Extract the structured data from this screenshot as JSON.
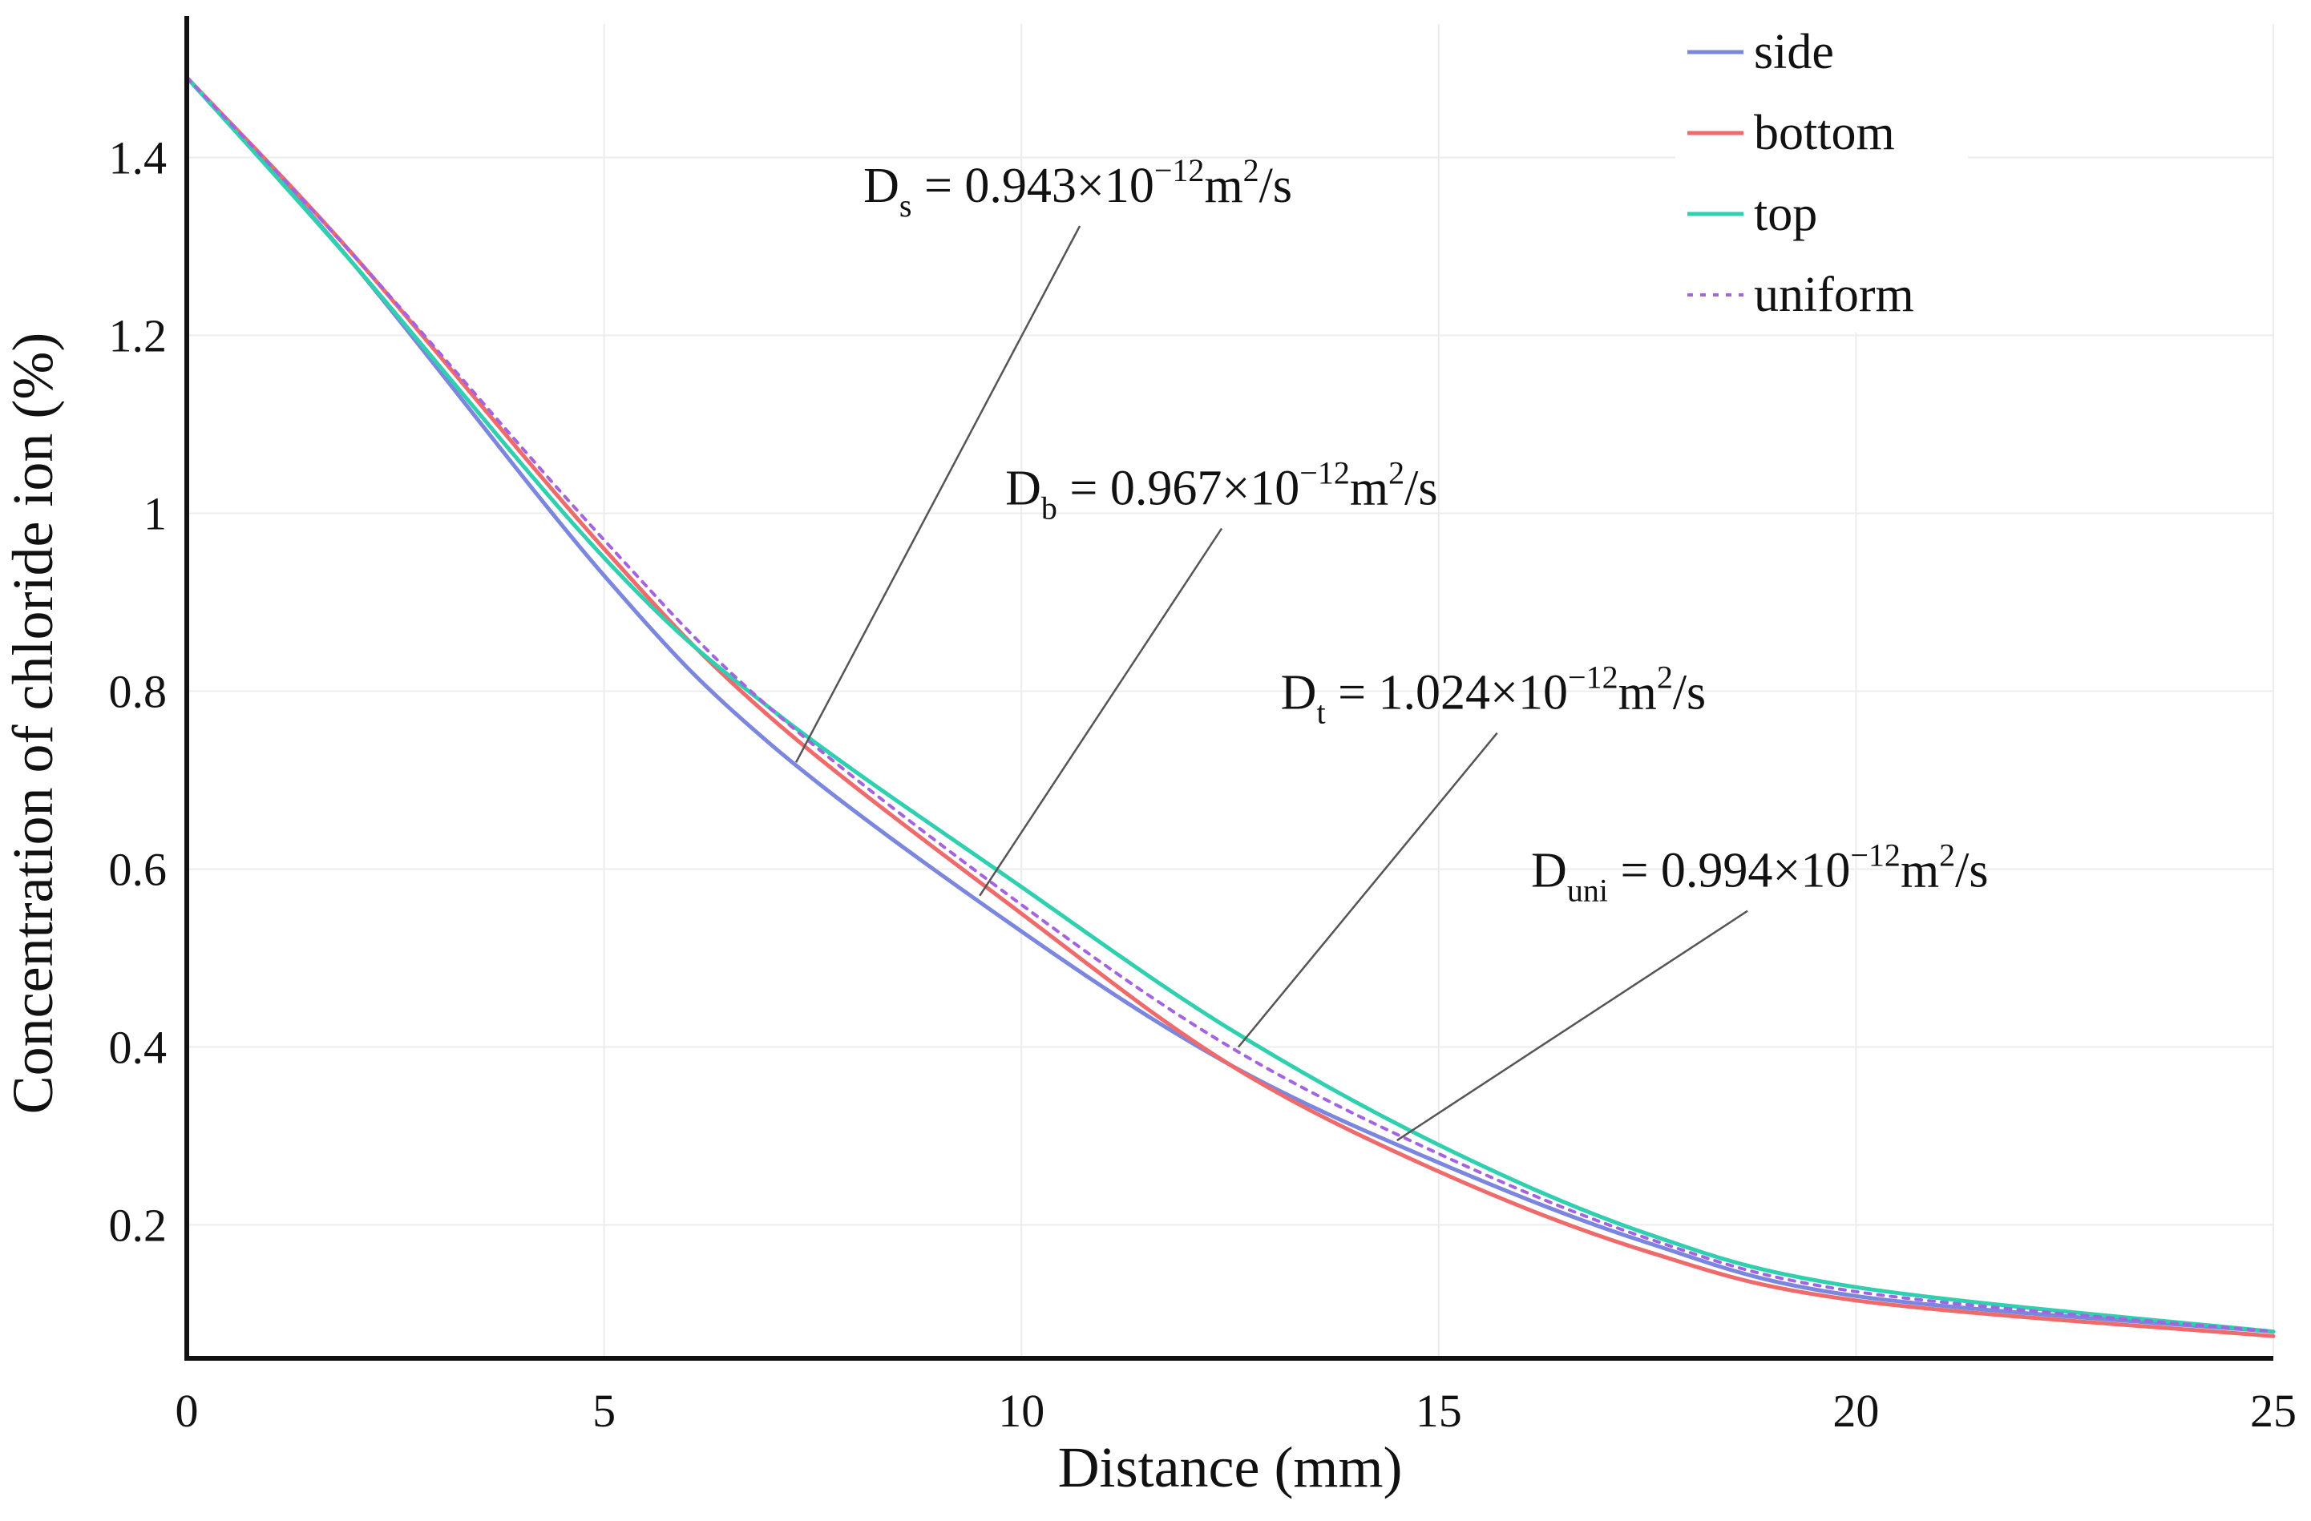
{
  "chart_data": {
    "type": "line",
    "xlabel": "Distance (mm)",
    "ylabel": "Concentration of chloride ion (%)",
    "xlim": [
      0,
      25
    ],
    "ylim": [
      0.05,
      1.55
    ],
    "grid": true,
    "legend_position": "top-right",
    "x_ticks": [
      {
        "value": 0,
        "label": "0"
      },
      {
        "value": 5,
        "label": "5"
      },
      {
        "value": 10,
        "label": "10"
      },
      {
        "value": 15,
        "label": "15"
      },
      {
        "value": 20,
        "label": "20"
      },
      {
        "value": 25,
        "label": "25"
      }
    ],
    "y_ticks": [
      {
        "value": 0.2,
        "label": "0.2"
      },
      {
        "value": 0.4,
        "label": "0.4"
      },
      {
        "value": 0.6,
        "label": "0.6"
      },
      {
        "value": 0.8,
        "label": "0.8"
      },
      {
        "value": 1.0,
        "label": "1"
      },
      {
        "value": 1.2,
        "label": "1.2"
      },
      {
        "value": 1.4,
        "label": "1.4"
      }
    ],
    "x": [
      0,
      2,
      5,
      7,
      10,
      12.5,
      15,
      17.5,
      20,
      25
    ],
    "series": [
      {
        "name": "side",
        "color": "#7b86de",
        "style": "solid",
        "values": [
          1.49,
          1.28,
          0.93,
          0.74,
          0.53,
          0.38,
          0.27,
          0.18,
          0.12,
          0.08
        ]
      },
      {
        "name": "bottom",
        "color": "#ef6a6a",
        "style": "solid",
        "values": [
          1.49,
          1.29,
          0.96,
          0.77,
          0.55,
          0.38,
          0.26,
          0.17,
          0.115,
          0.075
        ]
      },
      {
        "name": "top",
        "color": "#2fcfb0",
        "style": "solid",
        "values": [
          1.49,
          1.28,
          0.95,
          0.78,
          0.58,
          0.42,
          0.29,
          0.19,
          0.13,
          0.08
        ]
      },
      {
        "name": "uniform",
        "color": "#a463e0",
        "style": "dotted",
        "values": [
          1.49,
          1.29,
          0.97,
          0.78,
          0.56,
          0.4,
          0.28,
          0.185,
          0.125,
          0.08
        ]
      }
    ],
    "annotations": [
      {
        "symbol": "D",
        "subscript": "s",
        "equals": " = 0.943×10",
        "exponent": "−12",
        "unit": "m",
        "unit_sup": "2",
        "unit_tail": "/s",
        "pointer": {
          "x": 7.3,
          "y": 0.72
        },
        "label_at": {
          "x": 10.7,
          "y": 1.35
        }
      },
      {
        "symbol": "D",
        "subscript": "b",
        "equals": " = 0.967×10",
        "exponent": "−12",
        "unit": "m",
        "unit_sup": "2",
        "unit_tail": "/s",
        "pointer": {
          "x": 9.5,
          "y": 0.57
        },
        "label_at": {
          "x": 12.4,
          "y": 1.01
        }
      },
      {
        "symbol": "D",
        "subscript": "t",
        "equals": " = 1.024×10",
        "exponent": "−12",
        "unit": "m",
        "unit_sup": "2",
        "unit_tail": "/s",
        "pointer": {
          "x": 12.6,
          "y": 0.4
        },
        "label_at": {
          "x": 15.7,
          "y": 0.78
        }
      },
      {
        "symbol": "D",
        "subscript": "uni",
        "equals": " = 0.994×10",
        "exponent": "−12",
        "unit": "m",
        "unit_sup": "2",
        "unit_tail": "/s",
        "pointer": {
          "x": 14.5,
          "y": 0.295
        },
        "label_at": {
          "x": 18.7,
          "y": 0.58
        }
      }
    ]
  }
}
